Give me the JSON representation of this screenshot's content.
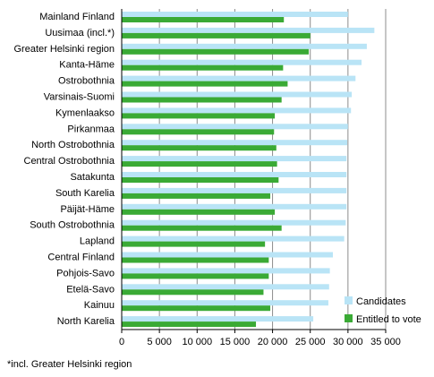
{
  "chart_data": {
    "type": "bar",
    "orientation": "horizontal",
    "categories": [
      "Mainland Finland",
      "Uusimaa (incl.*)",
      "Greater Helsinki region",
      "Kanta-Häme",
      "Ostrobothnia",
      "Varsinais-Suomi",
      "Kymenlaakso",
      "Pirkanmaa",
      "North Ostrobothnia",
      "Central Ostrobothnia",
      "Satakunta",
      "South Karelia",
      "Päijät-Häme",
      "South Ostrobothnia",
      "Lapland",
      "Central Finland",
      "Pohjois-Savo",
      "Etelä-Savo",
      "Kainuu",
      "North Karelia"
    ],
    "series": [
      {
        "name": "Candidates",
        "color": "#b9e4f6",
        "values": [
          30000,
          33500,
          32500,
          31800,
          31000,
          30500,
          30400,
          30000,
          29900,
          29800,
          29800,
          29800,
          29800,
          29700,
          29500,
          28000,
          27600,
          27500,
          27400,
          25400
        ]
      },
      {
        "name": "Entitled to vote",
        "color": "#3aaa35",
        "values": [
          21500,
          25000,
          24800,
          21400,
          22000,
          21200,
          20300,
          20200,
          20500,
          20600,
          20800,
          19700,
          20300,
          21200,
          19000,
          19500,
          19500,
          18800,
          19700,
          17800
        ]
      }
    ],
    "xlim": [
      0,
      35000
    ],
    "xticks": [
      "0",
      "5 000",
      "10 000",
      "15 000",
      "20 000",
      "25 000",
      "30 000",
      "35 000"
    ],
    "grid": "vertical",
    "legend_position": "bottom-right"
  },
  "footnote": "*incl. Greater Helsinki region"
}
